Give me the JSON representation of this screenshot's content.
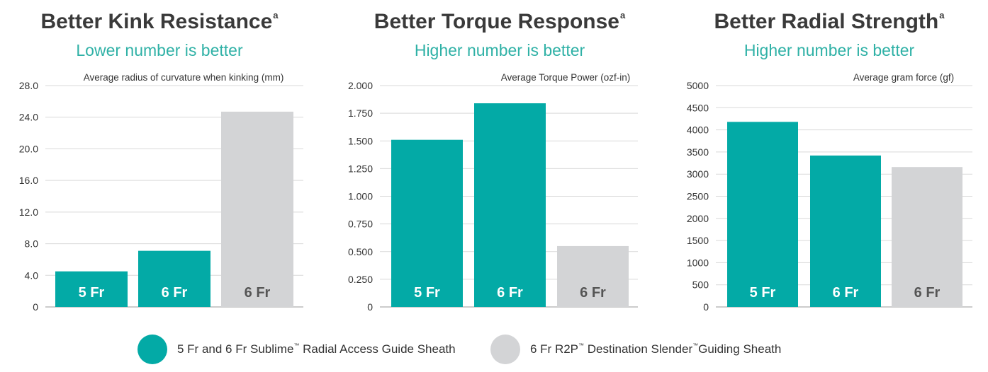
{
  "colors": {
    "teal": "#03aaa6",
    "gray": "#d3d4d6",
    "subtitle": "#2fb1a6",
    "grid": "#d9d9d9"
  },
  "legend": {
    "teal_label": "5 Fr and 6 Fr Sublime",
    "teal_tm": "™",
    "teal_rest": " Radial Access Guide Sheath",
    "gray_a": "6 Fr R2P",
    "gray_tm1": "™",
    "gray_b": " Destination Slender",
    "gray_tm2": "™",
    "gray_c": "Guiding Sheath"
  },
  "chart_data": [
    {
      "type": "bar",
      "title": "Better Kink Resistance",
      "title_sup": "a",
      "subtitle": "Lower number is better",
      "ylabel": "Average radius of curvature when kinking (mm)",
      "categories": [
        "5 Fr",
        "6 Fr",
        "6 Fr"
      ],
      "values": [
        4.5,
        7.1,
        24.7
      ],
      "bar_colors": [
        "teal",
        "teal",
        "gray"
      ],
      "ylim": [
        0,
        28
      ],
      "yticks": [
        "0",
        "4.0",
        "8.0",
        "12.0",
        "16.0",
        "20.0",
        "24.0",
        "28.0"
      ],
      "ytick_values": [
        0,
        4,
        8,
        12,
        16,
        20,
        24,
        28
      ],
      "grid": true
    },
    {
      "type": "bar",
      "title": "Better Torque Response",
      "title_sup": "a",
      "subtitle": "Higher number is better",
      "ylabel": "Average Torque Power (ozf-in)",
      "categories": [
        "5 Fr",
        "6 Fr",
        "6 Fr"
      ],
      "values": [
        1.51,
        1.84,
        0.55
      ],
      "bar_colors": [
        "teal",
        "teal",
        "gray"
      ],
      "ylim": [
        0,
        2
      ],
      "yticks": [
        "0",
        "0.250",
        "0.500",
        "0.750",
        "1.000",
        "1.250",
        "1.500",
        "1.750",
        "2.000"
      ],
      "ytick_values": [
        0,
        0.25,
        0.5,
        0.75,
        1,
        1.25,
        1.5,
        1.75,
        2
      ],
      "grid": true
    },
    {
      "type": "bar",
      "title": "Better Radial Strength",
      "title_sup": "a",
      "subtitle": "Higher number is better",
      "ylabel": "Average gram force (gf)",
      "categories": [
        "5 Fr",
        "6 Fr",
        "6 Fr"
      ],
      "values": [
        4180,
        3420,
        3160
      ],
      "bar_colors": [
        "teal",
        "teal",
        "gray"
      ],
      "ylim": [
        0,
        5000
      ],
      "yticks": [
        "0",
        "500",
        "1000",
        "1500",
        "2000",
        "2500",
        "3000",
        "3500",
        "4000",
        "4500",
        "5000"
      ],
      "ytick_values": [
        0,
        500,
        1000,
        1500,
        2000,
        2500,
        3000,
        3500,
        4000,
        4500,
        5000
      ],
      "grid": true
    }
  ]
}
